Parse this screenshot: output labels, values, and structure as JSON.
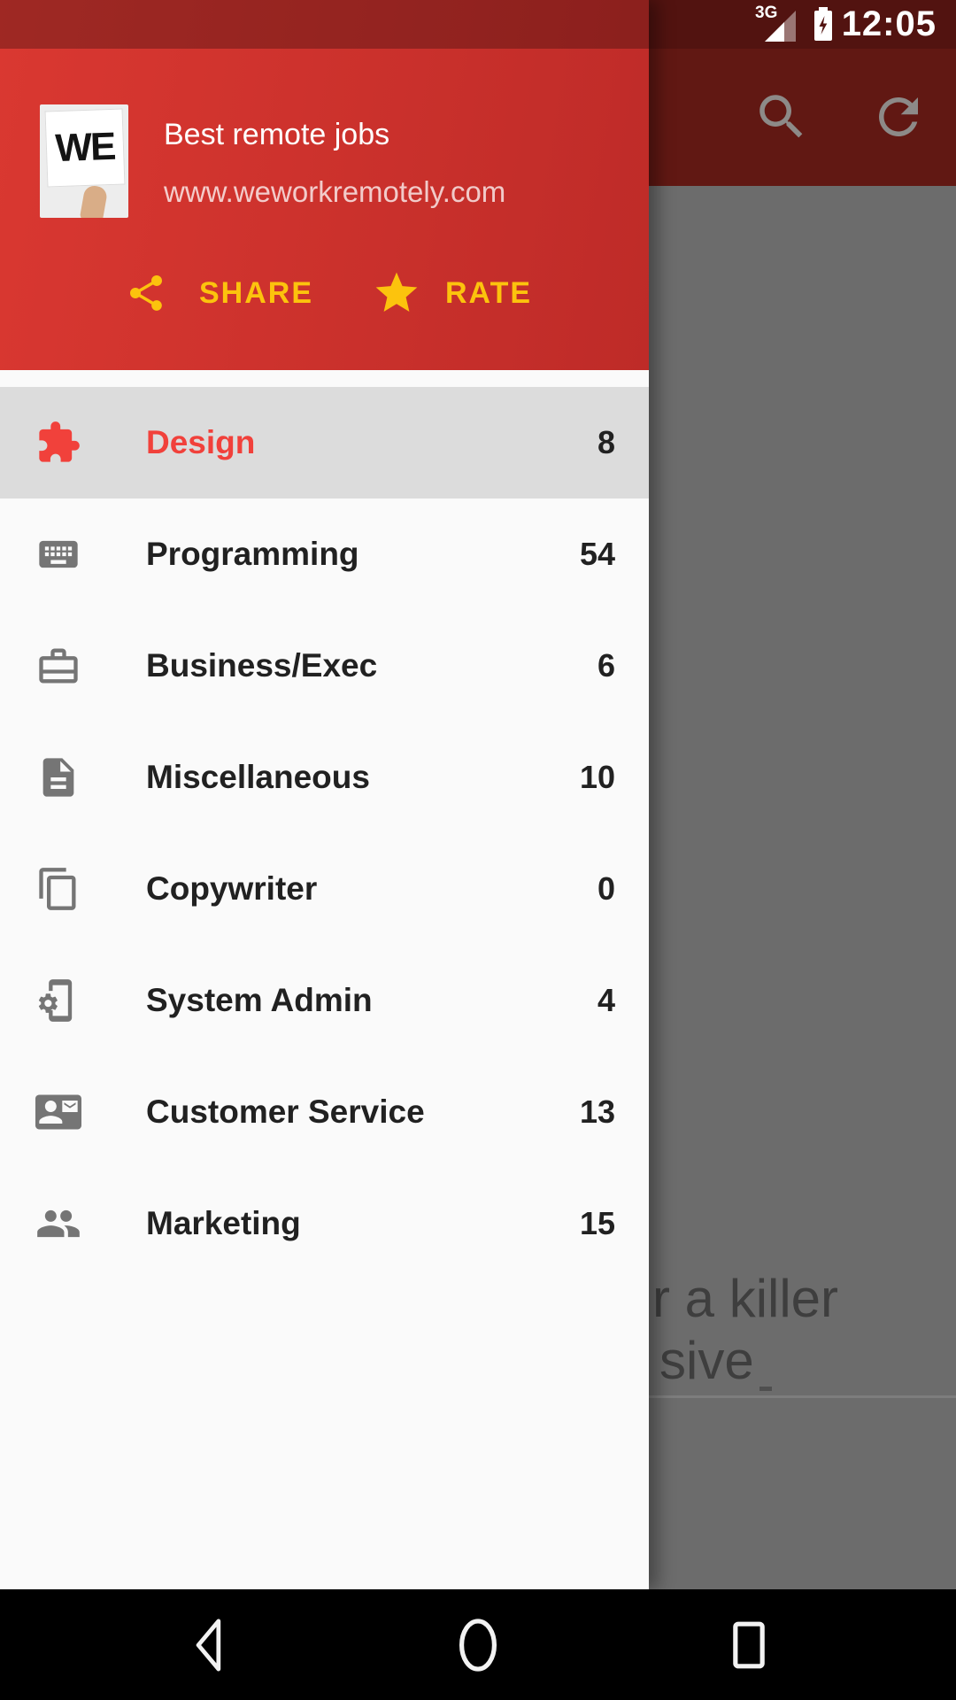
{
  "theme": {
    "header_red": "#DA3831",
    "header_red_dark": "#BE2B28",
    "accent_yellow": "#FCC30D",
    "active_item_red": "#F1413B",
    "item_icon_gray": "#757575",
    "dim_page_gray": "#6C6C6C"
  },
  "status_bar": {
    "network_label": "3G",
    "time": "12:05"
  },
  "background_toolbar": {
    "icons": [
      "search-icon",
      "refresh-icon"
    ]
  },
  "background_page": {
    "line1": "r a killer",
    "line2": "sive"
  },
  "drawer": {
    "header": {
      "logo_text": "WE",
      "title": "Best remote jobs",
      "subtitle": "www.weworkremotely.com",
      "share_label": "SHARE",
      "rate_label": "RATE"
    },
    "items": [
      {
        "id": "design",
        "label": "Design",
        "count": "8",
        "icon": "puzzle-icon",
        "active": true
      },
      {
        "id": "programming",
        "label": "Programming",
        "count": "54",
        "icon": "keyboard-icon",
        "active": false
      },
      {
        "id": "business-exec",
        "label": "Business/Exec",
        "count": "6",
        "icon": "briefcase-icon",
        "active": false
      },
      {
        "id": "miscellaneous",
        "label": "Miscellaneous",
        "count": "10",
        "icon": "document-icon",
        "active": false
      },
      {
        "id": "copywriter",
        "label": "Copywriter",
        "count": "0",
        "icon": "copy-pages-icon",
        "active": false
      },
      {
        "id": "system-admin",
        "label": "System Admin",
        "count": "4",
        "icon": "phone-gear-icon",
        "active": false
      },
      {
        "id": "customer-service",
        "label": "Customer Service",
        "count": "13",
        "icon": "contact-mail-icon",
        "active": false
      },
      {
        "id": "marketing",
        "label": "Marketing",
        "count": "15",
        "icon": "people-icon",
        "active": false
      }
    ]
  },
  "nav_bar": {
    "buttons": [
      "back",
      "home",
      "recents"
    ]
  }
}
